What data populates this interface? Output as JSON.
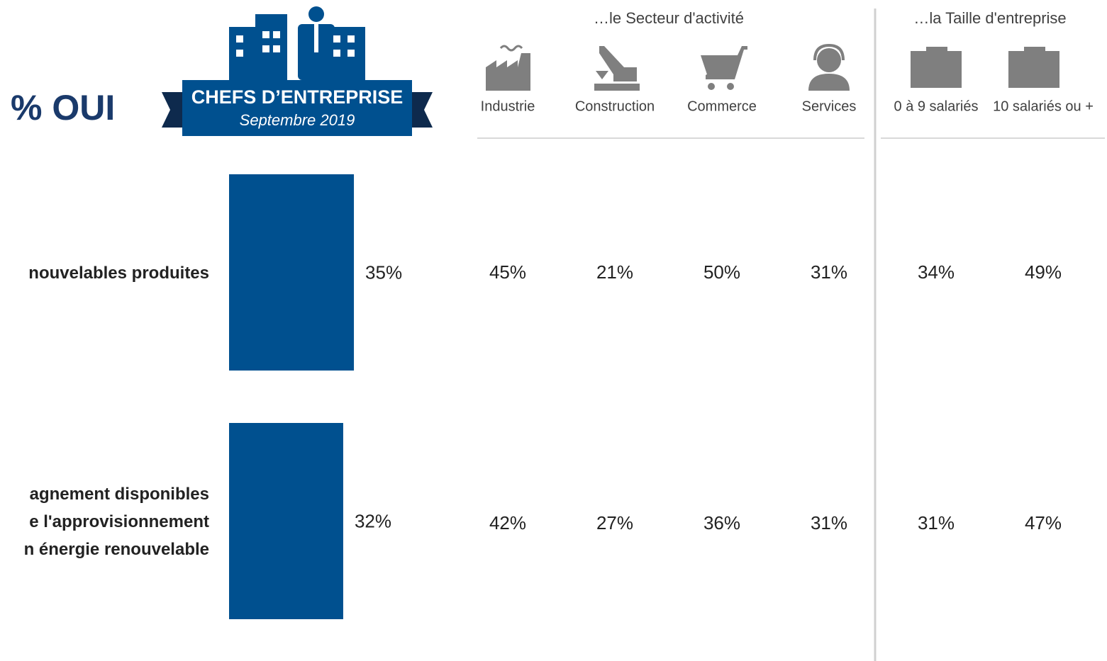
{
  "header": {
    "title": "% OUI",
    "badge_title": "CHEFS D’ENTREPRISE",
    "badge_subtitle": "Septembre 2019"
  },
  "chart_data": {
    "type": "bar",
    "orientation": "horizontal",
    "categories": [
      [
        "nouvelables produites"
      ],
      [
        "agnement disponibles",
        "e l'approvisionnement",
        "n énergie renouvelable"
      ]
    ],
    "values": [
      35,
      32
    ],
    "value_labels": [
      "35%",
      "32%"
    ],
    "color": "#00508f",
    "xlim": [
      0,
      100
    ]
  },
  "breakdown": {
    "groups": [
      {
        "title": "…le Secteur d'activité",
        "columns": [
          "Industrie",
          "Construction",
          "Commerce",
          "Services"
        ]
      },
      {
        "title": "…la Taille d'entreprise",
        "columns": [
          "0 à 9 salariés",
          "10 salariés ou +"
        ]
      }
    ],
    "rows": [
      [
        "45%",
        "21%",
        "50%",
        "31%",
        "34%",
        "49%"
      ],
      [
        "42%",
        "27%",
        "36%",
        "31%",
        "31%",
        "47%"
      ]
    ]
  }
}
